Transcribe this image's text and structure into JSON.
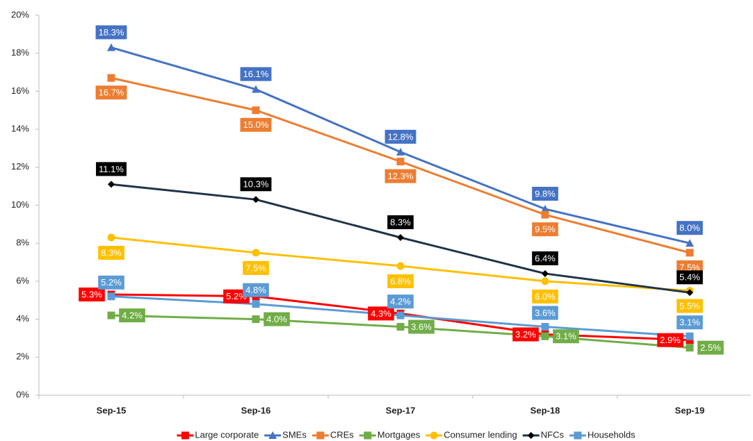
{
  "chart_data": {
    "type": "line",
    "categories": [
      "Sep-15",
      "Sep-16",
      "Sep-17",
      "Sep-18",
      "Sep-19"
    ],
    "ylim": [
      0,
      20
    ],
    "yticks": [
      {
        "value": 0,
        "label": "0%"
      },
      {
        "value": 2,
        "label": "2%"
      },
      {
        "value": 4,
        "label": "4%"
      },
      {
        "value": 6,
        "label": "6%"
      },
      {
        "value": 8,
        "label": "8%"
      },
      {
        "value": 10,
        "label": "10%"
      },
      {
        "value": 12,
        "label": "12%"
      },
      {
        "value": 14,
        "label": "14%"
      },
      {
        "value": 16,
        "label": "16%"
      },
      {
        "value": 18,
        "label": "18%"
      },
      {
        "value": 20,
        "label": "20%"
      }
    ],
    "grid": false,
    "legend": "bottom",
    "series": [
      {
        "name": "Large corporate",
        "color": "#ff0000",
        "marker": "square",
        "values": [
          5.3,
          5.2,
          4.3,
          3.2,
          2.9
        ],
        "value_labels": [
          "5.3%",
          "5.2%",
          "4.3%",
          "3.2%",
          "2.9%"
        ]
      },
      {
        "name": "SMEs",
        "color": "#4472c4",
        "marker": "triangle",
        "values": [
          18.3,
          16.1,
          12.8,
          9.8,
          8.0
        ],
        "value_labels": [
          "18.3%",
          "16.1%",
          "12.8%",
          "9.8%",
          "8.0%"
        ]
      },
      {
        "name": "CREs",
        "color": "#ed7d31",
        "marker": "square",
        "values": [
          16.7,
          15.0,
          12.3,
          9.5,
          7.5
        ],
        "value_labels": [
          "16.7%",
          "15.0%",
          "12.3%",
          "9.5%",
          "7.5%"
        ]
      },
      {
        "name": "Mortgages",
        "color": "#70ad47",
        "marker": "square",
        "values": [
          4.2,
          4.0,
          3.6,
          3.1,
          2.5
        ],
        "value_labels": [
          "4.2%",
          "4.0%",
          "3.6%",
          "3.1%",
          "2.5%"
        ]
      },
      {
        "name": "Consumer lending",
        "color": "#ffc000",
        "marker": "circle",
        "values": [
          8.3,
          7.5,
          6.8,
          6.0,
          5.5
        ],
        "value_labels": [
          "8.3%",
          "7.5%",
          "6.8%",
          "6.0%",
          "5.5%"
        ]
      },
      {
        "name": "NFCs",
        "color": "#000000",
        "marker": "diamond",
        "values": [
          11.1,
          10.3,
          8.3,
          6.4,
          5.4
        ],
        "value_labels": [
          "11.1%",
          "10.3%",
          "8.3%",
          "6.4%",
          "5.4%"
        ]
      },
      {
        "name": "Households",
        "color": "#5b9bd5",
        "marker": "square",
        "values": [
          5.2,
          4.8,
          4.2,
          3.6,
          3.1
        ],
        "value_labels": [
          "5.2%",
          "4.8%",
          "4.2%",
          "3.6%",
          "3.1%"
        ]
      }
    ]
  }
}
